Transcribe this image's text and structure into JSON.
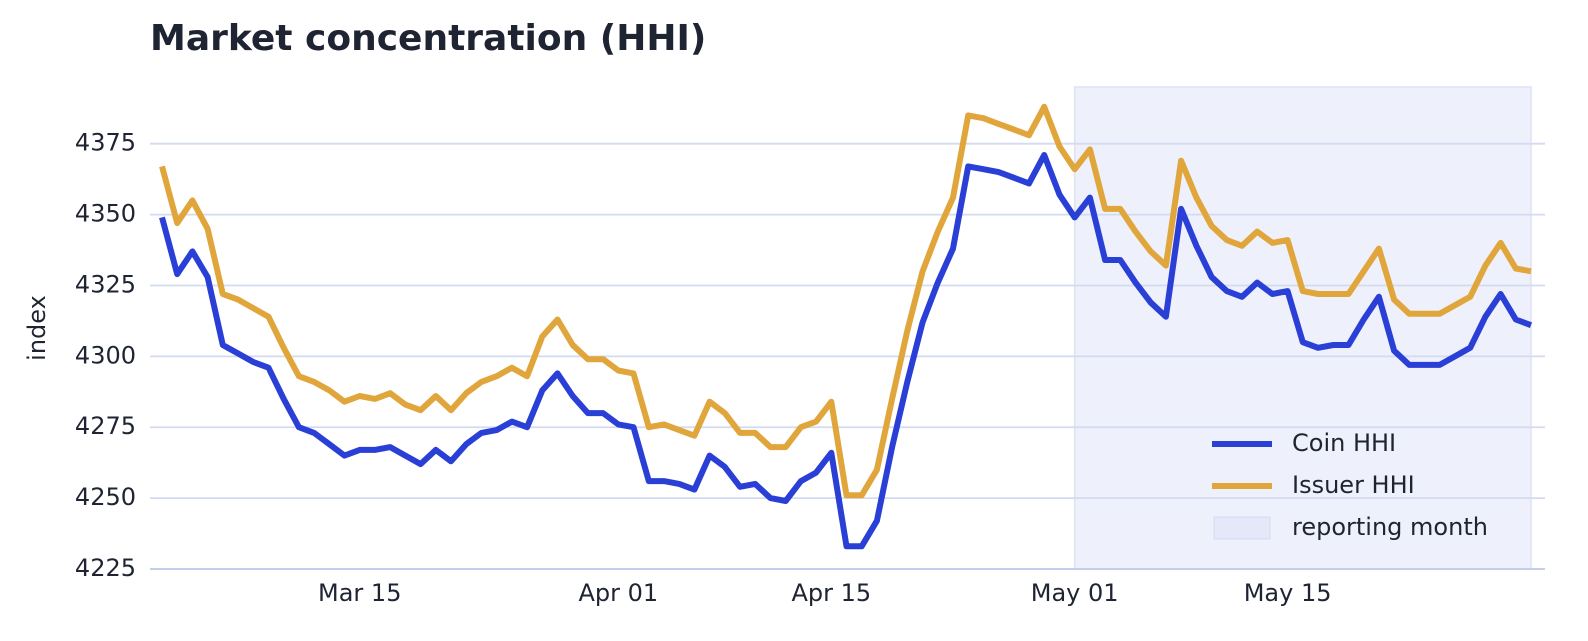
{
  "chart_data": {
    "type": "line",
    "title": "Market concentration (HHI)",
    "ylabel": "index",
    "x": [
      "Mar 02",
      "Mar 03",
      "Mar 04",
      "Mar 05",
      "Mar 06",
      "Mar 07",
      "Mar 08",
      "Mar 09",
      "Mar 10",
      "Mar 11",
      "Mar 12",
      "Mar 13",
      "Mar 14",
      "Mar 15",
      "Mar 16",
      "Mar 17",
      "Mar 18",
      "Mar 19",
      "Mar 20",
      "Mar 21",
      "Mar 22",
      "Mar 23",
      "Mar 24",
      "Mar 25",
      "Mar 26",
      "Mar 27",
      "Mar 28",
      "Mar 29",
      "Mar 30",
      "Mar 31",
      "Apr 01",
      "Apr 02",
      "Apr 03",
      "Apr 04",
      "Apr 05",
      "Apr 06",
      "Apr 07",
      "Apr 08",
      "Apr 09",
      "Apr 10",
      "Apr 11",
      "Apr 12",
      "Apr 13",
      "Apr 14",
      "Apr 15",
      "Apr 16",
      "Apr 17",
      "Apr 18",
      "Apr 19",
      "Apr 20",
      "Apr 21",
      "Apr 22",
      "Apr 23",
      "Apr 24",
      "Apr 25",
      "Apr 26",
      "Apr 27",
      "Apr 28",
      "Apr 29",
      "Apr 30",
      "May 01",
      "May 02",
      "May 03",
      "May 04",
      "May 05",
      "May 06",
      "May 07",
      "May 08",
      "May 09",
      "May 10",
      "May 11",
      "May 12",
      "May 13",
      "May 14",
      "May 15",
      "May 16",
      "May 17",
      "May 18",
      "May 19",
      "May 20",
      "May 21",
      "May 22",
      "May 23",
      "May 24",
      "May 25",
      "May 26",
      "May 27",
      "May 28",
      "May 29",
      "May 30",
      "May 31"
    ],
    "series": [
      {
        "name": "Coin HHI",
        "color": "#2a3fd6",
        "values": [
          4349,
          4329,
          4337,
          4328,
          4304,
          4301,
          4298,
          4296,
          4285,
          4275,
          4273,
          4269,
          4265,
          4267,
          4267,
          4268,
          4265,
          4262,
          4267,
          4263,
          4269,
          4273,
          4274,
          4277,
          4275,
          4288,
          4294,
          4286,
          4280,
          4280,
          4276,
          4275,
          4256,
          4256,
          4255,
          4253,
          4265,
          4261,
          4254,
          4255,
          4250,
          4249,
          4256,
          4259,
          4266,
          4233,
          4233,
          4242,
          4268,
          4291,
          4312,
          4326,
          4338,
          4367,
          4366,
          4365,
          4363,
          4361,
          4371,
          4357,
          4349,
          4356,
          4334,
          4334,
          4326,
          4319,
          4314,
          4352,
          4339,
          4328,
          4323,
          4321,
          4326,
          4322,
          4323,
          4305,
          4303,
          4304,
          4304,
          4313,
          4321,
          4302,
          4297,
          4297,
          4297,
          4300,
          4303,
          4314,
          4322,
          4313,
          4311
        ]
      },
      {
        "name": "Issuer HHI",
        "color": "#e0a63c",
        "values": [
          4367,
          4347,
          4355,
          4345,
          4322,
          4320,
          4317,
          4314,
          4303,
          4293,
          4291,
          4288,
          4284,
          4286,
          4285,
          4287,
          4283,
          4281,
          4286,
          4281,
          4287,
          4291,
          4293,
          4296,
          4293,
          4307,
          4313,
          4304,
          4299,
          4299,
          4295,
          4294,
          4275,
          4276,
          4274,
          4272,
          4284,
          4280,
          4273,
          4273,
          4268,
          4268,
          4275,
          4277,
          4284,
          4251,
          4251,
          4260,
          4285,
          4309,
          4330,
          4344,
          4356,
          4385,
          4384,
          4382,
          4380,
          4378,
          4388,
          4374,
          4366,
          4373,
          4352,
          4352,
          4344,
          4337,
          4332,
          4369,
          4356,
          4346,
          4341,
          4339,
          4344,
          4340,
          4341,
          4323,
          4322,
          4322,
          4322,
          4330,
          4338,
          4320,
          4315,
          4315,
          4315,
          4318,
          4321,
          4332,
          4340,
          4331,
          4330
        ]
      }
    ],
    "shade": {
      "label": "reporting month",
      "from": "May 01",
      "to": "May 31",
      "color": "#eef0fb"
    },
    "xticks": [
      "Mar 15",
      "Apr 01",
      "Apr 15",
      "May 01",
      "May 15"
    ],
    "ylim": [
      4225,
      4395
    ],
    "yticks": [
      4225,
      4250,
      4275,
      4300,
      4325,
      4350,
      4375
    ],
    "grid": true,
    "legend": "lower right"
  }
}
